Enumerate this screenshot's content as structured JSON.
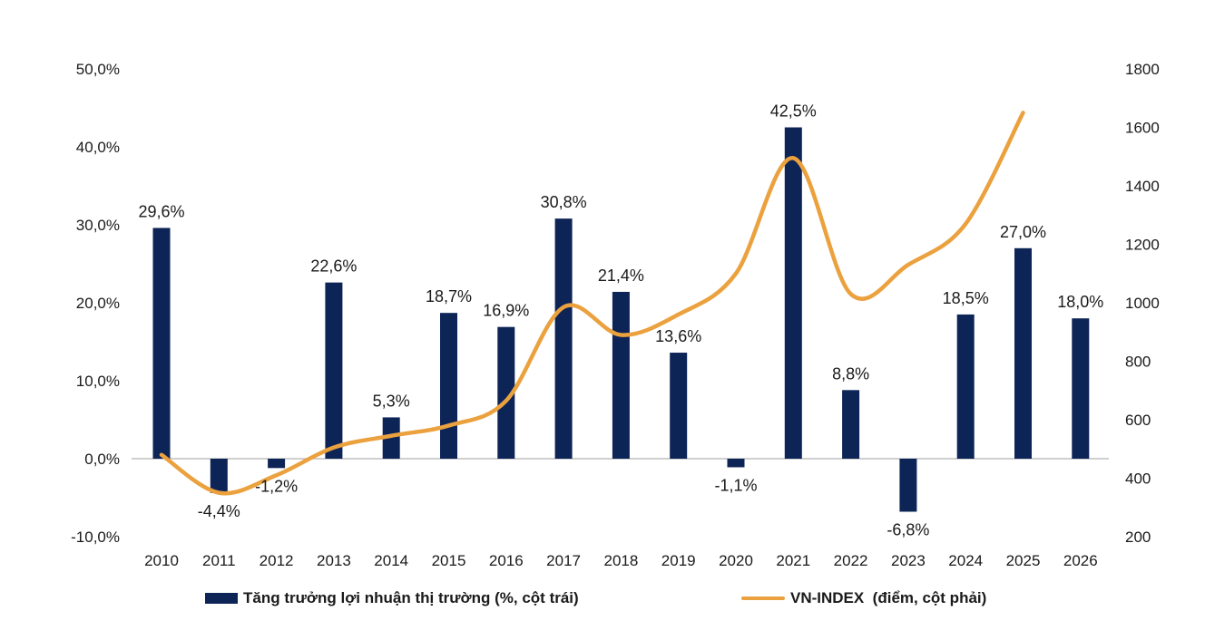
{
  "chart_data": {
    "type": "bar+line",
    "categories": [
      "2010",
      "2011",
      "2012",
      "2013",
      "2014",
      "2015",
      "2016",
      "2017",
      "2018",
      "2019",
      "2020",
      "2021",
      "2022",
      "2023",
      "2024",
      "2025",
      "2026"
    ],
    "series": [
      {
        "name": "Tăng trưởng lợi nhuận thị trường (%, cột trái)",
        "type": "bar",
        "axis": "left",
        "color": "#0d2457",
        "values": [
          29.6,
          -4.4,
          -1.2,
          22.6,
          5.3,
          18.7,
          16.9,
          30.8,
          21.4,
          13.6,
          -1.1,
          42.5,
          8.8,
          -6.8,
          18.5,
          27.0,
          18.0
        ],
        "labels": [
          "29,6%",
          "-4,4%",
          "-1,2%",
          "22,6%",
          "5,3%",
          "18,7%",
          "16,9%",
          "30,8%",
          "21,4%",
          "13,6%",
          "-1,1%",
          "42,5%",
          "8,8%",
          "-6,8%",
          "18,5%",
          "27,0%",
          "18,0%"
        ]
      },
      {
        "name": "VN-INDEX  (điểm, cột phải)",
        "type": "line",
        "axis": "right",
        "color": "#eba13e",
        "values": [
          480,
          350,
          410,
          505,
          545,
          580,
          665,
          985,
          890,
          960,
          1100,
          1495,
          1030,
          1130,
          1270,
          1650,
          null
        ]
      }
    ],
    "left_axis": {
      "ylim": [
        -10,
        50
      ],
      "ticks": [
        50,
        40,
        30,
        20,
        10,
        0,
        -10
      ],
      "tick_labels": [
        "50,0%",
        "40,0%",
        "30,0%",
        "20,0%",
        "10,0%",
        "0,0%",
        "-10,0%"
      ]
    },
    "right_axis": {
      "ylim": [
        200,
        1800
      ],
      "ticks": [
        1800,
        1600,
        1400,
        1200,
        1000,
        800,
        600,
        400,
        200
      ],
      "tick_labels": [
        "1800",
        "1600",
        "1400",
        "1200",
        "1000",
        "800",
        "600",
        "400",
        "200"
      ]
    },
    "legend_position": "bottom",
    "title": "",
    "xlabel": "",
    "ylabel": ""
  }
}
